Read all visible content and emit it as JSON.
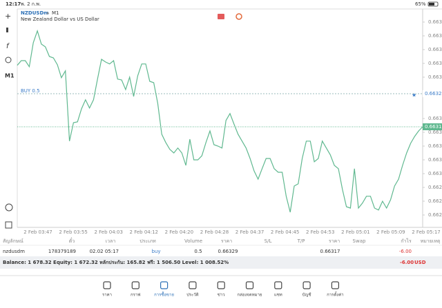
{
  "status_bar": {
    "time": "12:17",
    "date": "พ. 2 ก.พ.",
    "battery": "65%"
  },
  "chart": {
    "symbol": "NZDUSDm",
    "timeframe": "M1",
    "description": "New Zealand Dollar vs US Dollar",
    "toolbar_timeframe": "M1",
    "ylim": [
      0.662805,
      0.663595
    ],
    "yticks": [
      0.66355,
      {
        "value": 0.6635,
        "label": "0.66350"
      },
      0.66345,
      {
        "value": 0.6634,
        "label": "0.66340"
      },
      0.66335,
      {
        "value": 0.6632,
        "label": "0.66320"
      },
      0.66315,
      {
        "value": 0.6631,
        "label": "0.66310"
      },
      0.66305,
      {
        "value": 0.663,
        "label": "0.66300"
      },
      0.66295,
      {
        "value": 0.6629,
        "label": "0.66290"
      },
      0.66285
    ],
    "xlabels": [
      "2 Feb 03:47",
      "2 Feb 03:55",
      "2 Feb 04:03",
      "2 Feb 04:12",
      "2 Feb 04:20",
      "2 Feb 04:28",
      "2 Feb 04:37",
      "2 Feb 04:45",
      "2 Feb 04:53",
      "2 Feb 05:01",
      "2 Feb 05:09",
      "2 Feb 05:17"
    ],
    "color": "#5fb88f",
    "values": [
      0.663393,
      0.66341,
      0.66341,
      0.663388,
      0.663475,
      0.663518,
      0.66347,
      0.66346,
      0.663425,
      0.66342,
      0.663395,
      0.663348,
      0.663373,
      0.663118,
      0.663185,
      0.663188,
      0.663235,
      0.663268,
      0.663238,
      0.663268,
      0.663343,
      0.663415,
      0.663405,
      0.663398,
      0.66341,
      0.663343,
      0.66334,
      0.663305,
      0.66335,
      0.66328,
      0.663355,
      0.663398,
      0.663398,
      0.663335,
      0.66333,
      0.663255,
      0.663143,
      0.663113,
      0.663088,
      0.663075,
      0.663093,
      0.663075,
      0.66303,
      0.663125,
      0.66305,
      0.66305,
      0.663065,
      0.663113,
      0.663155,
      0.663105,
      0.6631,
      0.663093,
      0.663193,
      0.663218,
      0.66318,
      0.663143,
      0.663118,
      0.663093,
      0.663055,
      0.66301,
      0.66298,
      0.663018,
      0.663055,
      0.663055,
      0.663018,
      0.663005,
      0.663005,
      0.662918,
      0.66286,
      0.662955,
      0.662963,
      0.663055,
      0.663118,
      0.663118,
      0.663043,
      0.663055,
      0.663118,
      0.663093,
      0.663068,
      0.66303,
      0.663018,
      0.662943,
      0.66288,
      0.662875,
      0.663018,
      0.662875,
      0.662893,
      0.662918,
      0.662918,
      0.662875,
      0.662868,
      0.6629,
      0.662875,
      0.662905,
      0.662955,
      0.66298,
      0.66303,
      0.663075,
      0.66311,
      0.663135,
      0.663155,
      0.66317
    ],
    "order_line": {
      "label": "BUY 0.5",
      "price": 0.66329,
      "price_label": "0.66329"
    },
    "current_price": {
      "price": 0.66317,
      "label": "0.66317"
    }
  },
  "table": {
    "headers": [
      "สัญลักษณ์",
      "ตั๋ว",
      "เวลา",
      "ประเภท",
      "Volume",
      "ราคา",
      "S/L",
      "T/P",
      "ราคา",
      "Swap",
      "กำไร",
      "หมายเหตุ"
    ],
    "row": {
      "symbol": "nzdusdm",
      "ticket": "178379189",
      "time": "02.02 05:17",
      "type": "buy",
      "volume": "0.5",
      "open_price": "0.66329",
      "price": "0.66317",
      "profit": "-6.00"
    }
  },
  "balance": {
    "text": "Balance: 1 678.32 Equity: 1 672.32 หลักประกัน: 165.82 ฟรี: 1 506.50 Level: 1 008.52%",
    "profit": "-6.00",
    "currency": "USD"
  },
  "nav": [
    "ราคา",
    "กราฟ",
    "การซื้อขาย",
    "ประวัติ",
    "ข่าว",
    "กล่องจดหมาย",
    "แชท",
    "บัญชี",
    "การตั้งค่า"
  ]
}
